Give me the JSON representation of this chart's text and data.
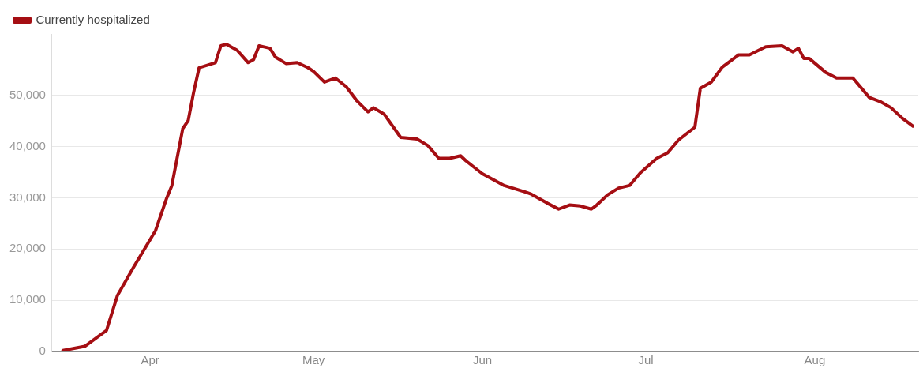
{
  "chart_data": {
    "type": "line",
    "legend": "top left",
    "grid": "y",
    "marker": "none",
    "line_style": "solid",
    "x": [
      "--03-16",
      "--03-20",
      "--03-24",
      "--03-26",
      "--03-29",
      "--04-02",
      "--04-04",
      "--04-05",
      "--04-07",
      "--04-08",
      "--04-09",
      "--04-10",
      "--04-13",
      "--04-14",
      "--04-15",
      "--04-17",
      "--04-19",
      "--04-20",
      "--04-21",
      "--04-23",
      "--04-24",
      "--04-26",
      "--04-28",
      "--04-30",
      "--05-01",
      "--05-03",
      "--05-05",
      "--05-07",
      "--05-09",
      "--05-11",
      "--05-12",
      "--05-14",
      "--05-17",
      "--05-20",
      "--05-22",
      "--05-24",
      "--05-26",
      "--05-28",
      "--05-29",
      "--06-01",
      "--06-05",
      "--06-09",
      "--06-10",
      "--06-13",
      "--06-15",
      "--06-17",
      "--06-19",
      "--06-21",
      "--06-22",
      "--06-24",
      "--06-26",
      "--06-28",
      "--06-30",
      "--07-03",
      "--07-05",
      "--07-07",
      "--07-10",
      "--07-11",
      "--07-13",
      "--07-15",
      "--07-18",
      "--07-20",
      "--07-23",
      "--07-26",
      "--07-28",
      "--07-29",
      "--07-30",
      "--07-31",
      "--08-03",
      "--08-05",
      "--08-08",
      "--08-11",
      "--08-13",
      "--08-15",
      "--08-17",
      "--08-19"
    ],
    "series": [
      {
        "name": "Currently hospitalized",
        "color": "#a50e13",
        "values": [
          200,
          1000,
          4100,
          10900,
          16500,
          23600,
          29800,
          32400,
          43500,
          45100,
          50600,
          55400,
          56400,
          59700,
          60000,
          58800,
          56400,
          57000,
          59700,
          59200,
          57500,
          56200,
          56400,
          55400,
          54700,
          52600,
          53400,
          51700,
          48900,
          46800,
          47600,
          46300,
          41800,
          41500,
          40200,
          37700,
          37700,
          38200,
          37200,
          34700,
          32400,
          31100,
          30700,
          28900,
          27800,
          28600,
          28400,
          27800,
          28600,
          30600,
          31900,
          32400,
          34900,
          37700,
          38800,
          41300,
          43800,
          51400,
          52600,
          55500,
          57900,
          57900,
          59500,
          59700,
          58500,
          59200,
          57200,
          57200,
          54500,
          53400,
          53400,
          49600,
          48800,
          47600,
          45600,
          44000
        ]
      }
    ],
    "xlim": [
      "--03-14",
      "--08-20"
    ],
    "xticks": [
      {
        "value": "--04-01",
        "label": "Apr"
      },
      {
        "value": "--05-01",
        "label": "May"
      },
      {
        "value": "--06-01",
        "label": "Jun"
      },
      {
        "value": "--07-01",
        "label": "Jul"
      },
      {
        "value": "--08-01",
        "label": "Aug"
      }
    ],
    "ylim": [
      0,
      62000
    ],
    "yticks": [
      0,
      {
        "value": 10000,
        "label": "10,000"
      },
      {
        "value": 20000,
        "label": "20,000"
      },
      {
        "value": 30000,
        "label": "30,000"
      },
      {
        "value": 40000,
        "label": "40,000"
      },
      {
        "value": 50000,
        "label": "50,000"
      }
    ]
  }
}
